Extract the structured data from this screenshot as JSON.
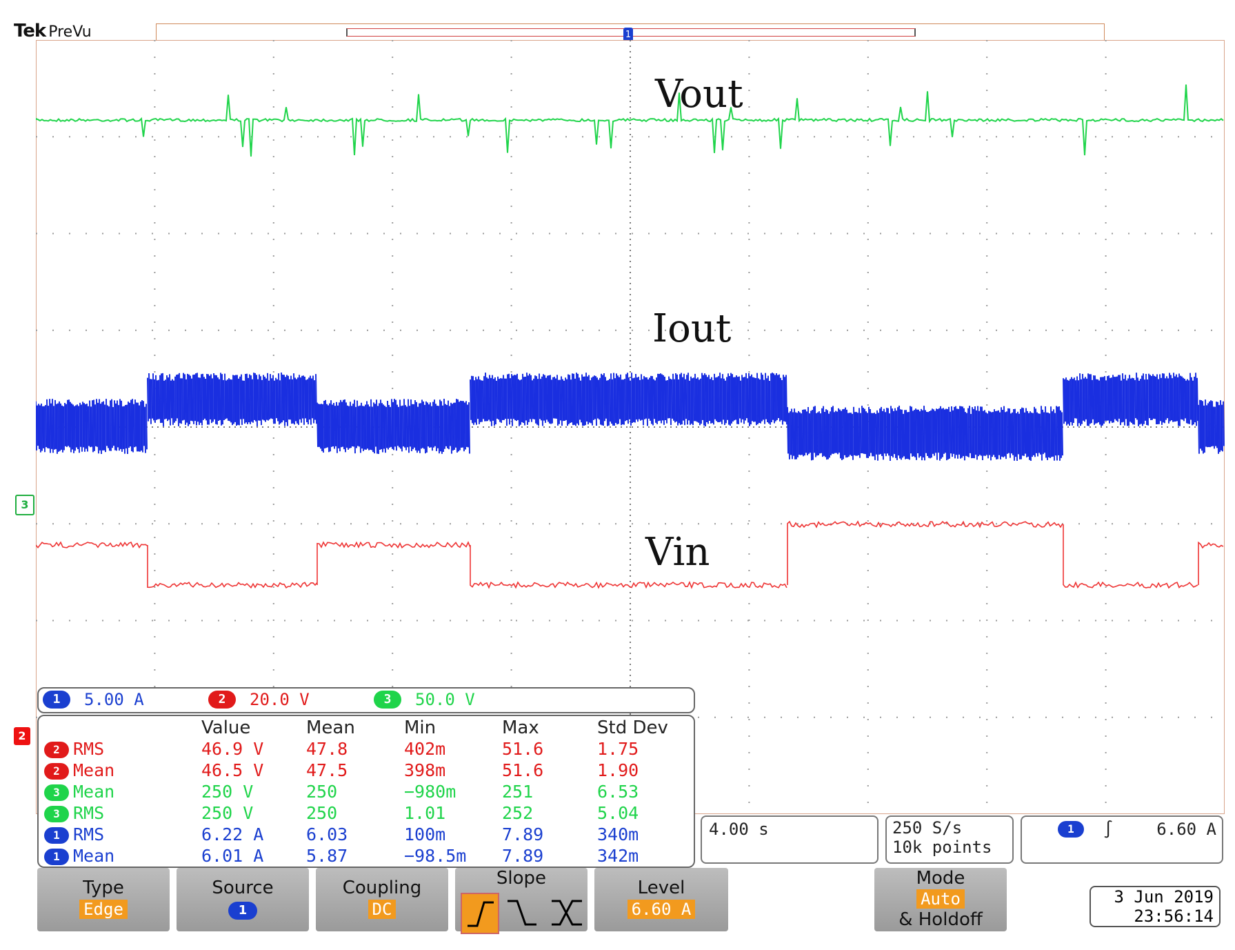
{
  "header": {
    "brand": "Tek",
    "mode": "PreVu"
  },
  "trigger_marker": "1",
  "labels": {
    "vout": "Vout",
    "iout": "Iout",
    "vin": "Vin"
  },
  "markers": {
    "ch3": "3",
    "ch2": "2"
  },
  "channels": [
    {
      "num": "1",
      "scale": "5.00 A",
      "color": "#1a3fd0"
    },
    {
      "num": "2",
      "scale": "20.0 V",
      "color": "#e11a1a"
    },
    {
      "num": "3",
      "scale": "50.0 V",
      "color": "#1fd44a"
    }
  ],
  "measurements": {
    "headers": [
      "Value",
      "Mean",
      "Min",
      "Max",
      "Std Dev"
    ],
    "rows": [
      {
        "ch": "2",
        "type": "RMS",
        "value": "46.9 V",
        "mean": "47.8",
        "min": "402m",
        "max": "51.6",
        "std": "1.75",
        "color": "#e11a1a"
      },
      {
        "ch": "2",
        "type": "Mean",
        "value": "46.5 V",
        "mean": "47.5",
        "min": "398m",
        "max": "51.6",
        "std": "1.90",
        "color": "#e11a1a"
      },
      {
        "ch": "3",
        "type": "Mean",
        "value": "250 V",
        "mean": "250",
        "min": "−980m",
        "max": "251",
        "std": "6.53",
        "color": "#1fd44a"
      },
      {
        "ch": "3",
        "type": "RMS",
        "value": "250 V",
        "mean": "250",
        "min": "1.01",
        "max": "252",
        "std": "5.04",
        "color": "#1fd44a"
      },
      {
        "ch": "1",
        "type": "RMS",
        "value": "6.22 A",
        "mean": "6.03",
        "min": "100m",
        "max": "7.89",
        "std": "340m",
        "color": "#1a3fd0"
      },
      {
        "ch": "1",
        "type": "Mean",
        "value": "6.01 A",
        "mean": "5.87",
        "min": "−98.5m",
        "max": "7.89",
        "std": "342m",
        "color": "#1a3fd0"
      }
    ]
  },
  "timebase": "4.00 s",
  "acquisition": {
    "rate": "250 S/s",
    "points": "10k points"
  },
  "trigger_info": {
    "channel": "1",
    "slope_glyph": "∫",
    "level": "6.60 A"
  },
  "softkeys": {
    "type": {
      "label": "Type",
      "value": "Edge"
    },
    "source": {
      "label": "Source",
      "value": "1"
    },
    "coupling": {
      "label": "Coupling",
      "value": "DC"
    },
    "slope": {
      "label": "Slope"
    },
    "level": {
      "label": "Level",
      "value": "6.60 A"
    },
    "mode": {
      "label": "Mode",
      "value": "Auto",
      "extra": "& Holdoff"
    }
  },
  "datetime": {
    "date": "3 Jun 2019",
    "time": "23:56:14"
  },
  "colors": {
    "ch1": "#1a3fd0",
    "ch2": "#e11a1a",
    "ch3": "#1fd44a",
    "accent": "#f29a1e"
  }
}
